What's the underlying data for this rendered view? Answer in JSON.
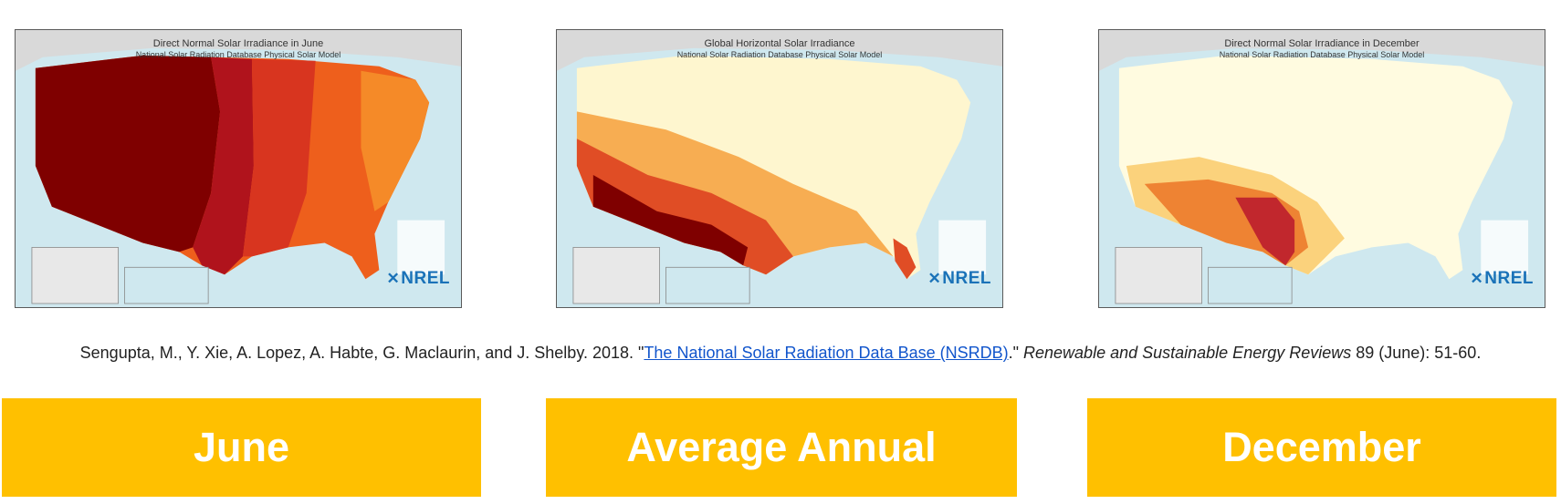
{
  "maps": [
    {
      "title": "Direct Normal Solar Irradiance in June",
      "subtitle": "National Solar Radiation Database Physical Solar Model",
      "logo_text": "NREL",
      "base_color": "#c1272d",
      "palette": [
        "#7f0000",
        "#b0131c",
        "#d8351f",
        "#ee5f1c",
        "#f58a28",
        "#f9b04a",
        "#fcd27a",
        "#fdebac"
      ]
    },
    {
      "title": "Global Horizontal Solar Irradiance",
      "subtitle": "National Solar Radiation Database Physical Solar Model",
      "logo_text": "NREL",
      "base_color": "#fde9a8",
      "palette": [
        "#fef6cf",
        "#fde9a8",
        "#fbd27c",
        "#f7ad52",
        "#f08233",
        "#e04d25",
        "#b71c1c",
        "#7f0000"
      ]
    },
    {
      "title": "Direct Normal Solar Irradiance in December",
      "subtitle": "National Solar Radiation Database Physical Solar Model",
      "logo_text": "NREL",
      "base_color": "#fef4c8",
      "palette": [
        "#fffbe0",
        "#fef4c8",
        "#fde8a6",
        "#fbd27c",
        "#f6ad54",
        "#ee8333",
        "#df5224",
        "#c1272d"
      ]
    }
  ],
  "citation": {
    "prefix": "Sengupta, M., Y. Xie, A. Lopez, A. Habte, G. Maclaurin, and J. Shelby. 2018. \"",
    "link_text": "The National Solar Radiation Data Base (NSRDB)",
    "middle": ".\" ",
    "journal": "Renewable and Sustainable Energy Reviews",
    "suffix": "  89 (June): 51-60."
  },
  "labels": [
    "June",
    "Average Annual",
    "December"
  ],
  "colors": {
    "label_background": "#ffc000",
    "label_text": "#ffffff",
    "water": "#cfe8ef",
    "land_outside": "#d9d9d9"
  }
}
